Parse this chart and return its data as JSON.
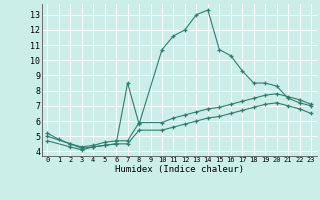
{
  "title": "",
  "xlabel": "Humidex (Indice chaleur)",
  "bg_color": "#cceee8",
  "grid_color": "#ffffff",
  "line_color": "#2e7d6e",
  "xlim": [
    -0.5,
    23.5
  ],
  "ylim": [
    3.7,
    13.7
  ],
  "xticks": [
    0,
    1,
    2,
    3,
    4,
    5,
    6,
    7,
    8,
    9,
    10,
    11,
    12,
    13,
    14,
    15,
    16,
    17,
    18,
    19,
    20,
    21,
    22,
    23
  ],
  "yticks": [
    4,
    5,
    6,
    7,
    8,
    9,
    10,
    11,
    12,
    13
  ],
  "series1_x": [
    0,
    1,
    2,
    3,
    4,
    5,
    6,
    7,
    8,
    10,
    11,
    12,
    13,
    14,
    15,
    16,
    17,
    18,
    19,
    20,
    21,
    22,
    23
  ],
  "series1_y": [
    5.2,
    4.8,
    4.5,
    4.2,
    4.3,
    4.4,
    4.5,
    8.5,
    5.8,
    10.7,
    11.6,
    12.0,
    13.0,
    13.3,
    10.7,
    10.3,
    9.3,
    8.5,
    8.5,
    8.3,
    7.5,
    7.2,
    7.0
  ],
  "series2_x": [
    0,
    2,
    3,
    4,
    5,
    6,
    7,
    8,
    10,
    11,
    12,
    13,
    14,
    15,
    16,
    17,
    18,
    19,
    20,
    21,
    22,
    23
  ],
  "series2_y": [
    5.0,
    4.5,
    4.3,
    4.4,
    4.6,
    4.7,
    4.7,
    5.9,
    5.9,
    6.2,
    6.4,
    6.6,
    6.8,
    6.9,
    7.1,
    7.3,
    7.5,
    7.7,
    7.8,
    7.6,
    7.4,
    7.1
  ],
  "series3_x": [
    0,
    2,
    3,
    4,
    5,
    6,
    7,
    8,
    10,
    11,
    12,
    13,
    14,
    15,
    16,
    17,
    18,
    19,
    20,
    21,
    22,
    23
  ],
  "series3_y": [
    4.7,
    4.3,
    4.1,
    4.3,
    4.4,
    4.5,
    4.5,
    5.4,
    5.4,
    5.6,
    5.8,
    6.0,
    6.2,
    6.3,
    6.5,
    6.7,
    6.9,
    7.1,
    7.2,
    7.0,
    6.8,
    6.5
  ]
}
